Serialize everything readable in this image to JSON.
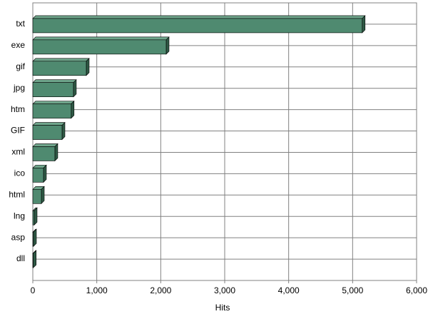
{
  "chart_data": {
    "type": "bar",
    "orientation": "horizontal",
    "xlabel": "Hits",
    "categories": [
      "txt",
      "exe",
      "gif",
      "jpg",
      "htm",
      "GIF",
      "xml",
      "ico",
      "html",
      "lng",
      "asp",
      "dll"
    ],
    "values": [
      5150,
      2085,
      836,
      635,
      600,
      457,
      345,
      167,
      134,
      22,
      11,
      8
    ],
    "color": "#4f8a70",
    "xlim": [
      0,
      6000
    ],
    "xticks": [
      0,
      {
        "value": 1000,
        "label": "1,000"
      },
      {
        "value": 2000,
        "label": "2,000"
      },
      {
        "value": 3000,
        "label": "3,000"
      },
      {
        "value": 4000,
        "label": "4,000"
      },
      {
        "value": 5000,
        "label": "5,000"
      },
      {
        "value": 6000,
        "label": "6,000"
      }
    ],
    "grid": true
  }
}
